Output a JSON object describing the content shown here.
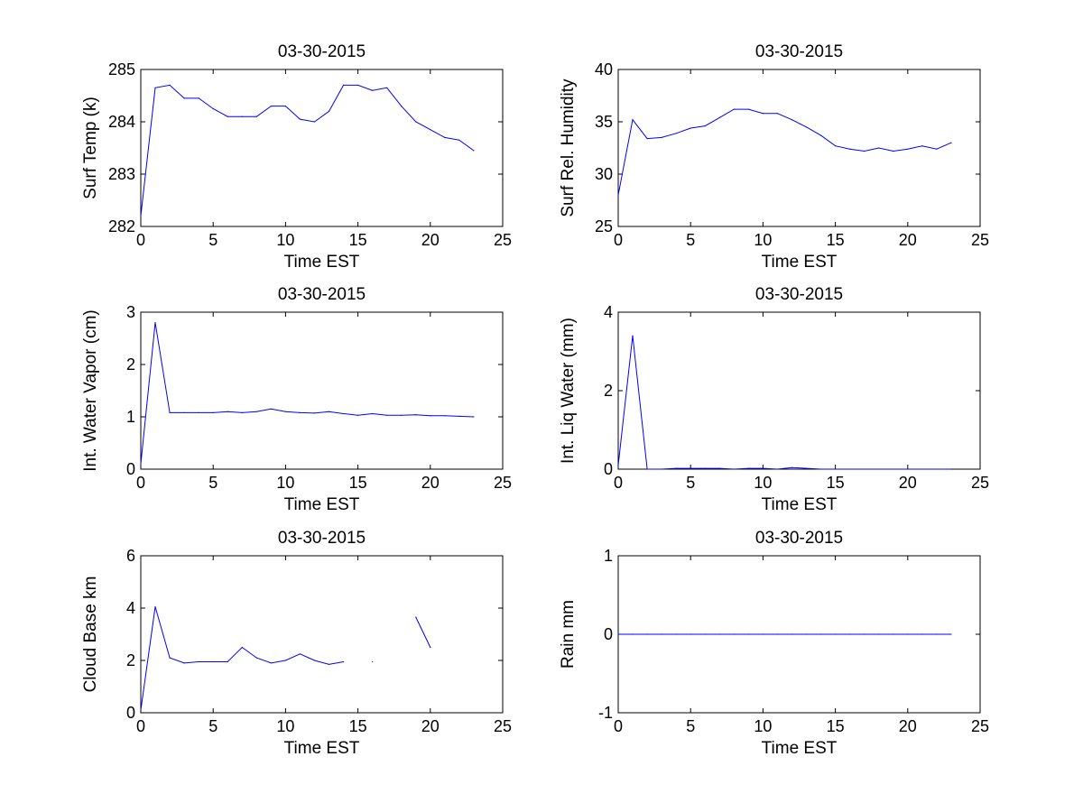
{
  "figure": {
    "background": "#ffffff",
    "line_color": "#0000ff",
    "axis_color": "#000000"
  },
  "chart_data": [
    {
      "type": "line",
      "title": "03-30-2015",
      "xlabel": "Time EST",
      "ylabel": "Surf Temp (k)",
      "xlim": [
        0,
        25
      ],
      "ylim": [
        282,
        285
      ],
      "xticks": [
        0,
        5,
        10,
        15,
        20,
        25
      ],
      "yticks": [
        282,
        283,
        284,
        285
      ],
      "grid": false,
      "series": [
        {
          "x": [
            0,
            1,
            2,
            3,
            4,
            5,
            6,
            7,
            8,
            9,
            10,
            11,
            12,
            13,
            14,
            15,
            16,
            17,
            18,
            19,
            20,
            21,
            22,
            23
          ],
          "y": [
            282.2,
            284.65,
            284.7,
            284.45,
            284.45,
            284.25,
            284.1,
            284.1,
            284.1,
            284.3,
            284.3,
            284.05,
            284.0,
            284.2,
            284.7,
            284.7,
            284.6,
            284.65,
            284.3,
            284.0,
            283.85,
            283.7,
            283.65,
            283.45
          ]
        }
      ]
    },
    {
      "type": "line",
      "title": "03-30-2015",
      "xlabel": "Time EST",
      "ylabel": "Surf Rel. Humidity",
      "xlim": [
        0,
        25
      ],
      "ylim": [
        25,
        40
      ],
      "xticks": [
        0,
        5,
        10,
        15,
        20,
        25
      ],
      "yticks": [
        25,
        30,
        35,
        40
      ],
      "grid": false,
      "series": [
        {
          "x": [
            0,
            1,
            2,
            3,
            4,
            5,
            6,
            7,
            8,
            9,
            10,
            11,
            12,
            13,
            14,
            15,
            16,
            17,
            18,
            19,
            20,
            21,
            22,
            23
          ],
          "y": [
            28.0,
            35.2,
            33.4,
            33.5,
            33.9,
            34.4,
            34.6,
            35.4,
            36.2,
            36.2,
            35.8,
            35.8,
            35.2,
            34.5,
            33.7,
            32.7,
            32.4,
            32.2,
            32.5,
            32.2,
            32.4,
            32.7,
            32.4,
            33.0
          ]
        }
      ]
    },
    {
      "type": "line",
      "title": "03-30-2015",
      "xlabel": "Time EST",
      "ylabel": "Int. Water Vapor (cm)",
      "xlim": [
        0,
        25
      ],
      "ylim": [
        0,
        3
      ],
      "xticks": [
        0,
        5,
        10,
        15,
        20,
        25
      ],
      "yticks": [
        0,
        1,
        2,
        3
      ],
      "grid": false,
      "series": [
        {
          "x": [
            0,
            1,
            2,
            3,
            4,
            5,
            6,
            7,
            8,
            9,
            10,
            11,
            12,
            13,
            14,
            15,
            16,
            17,
            18,
            19,
            20,
            21,
            22,
            23
          ],
          "y": [
            0.1,
            2.8,
            1.08,
            1.08,
            1.08,
            1.08,
            1.1,
            1.08,
            1.1,
            1.15,
            1.1,
            1.08,
            1.07,
            1.1,
            1.06,
            1.03,
            1.06,
            1.03,
            1.03,
            1.04,
            1.02,
            1.02,
            1.01,
            1.0
          ]
        }
      ]
    },
    {
      "type": "line",
      "title": "03-30-2015",
      "xlabel": "Time EST",
      "ylabel": "Int. Liq Water (mm)",
      "xlim": [
        0,
        25
      ],
      "ylim": [
        0,
        4
      ],
      "xticks": [
        0,
        5,
        10,
        15,
        20,
        25
      ],
      "yticks": [
        0,
        2,
        4
      ],
      "grid": false,
      "series": [
        {
          "x": [
            0,
            1,
            2,
            3,
            4,
            5,
            6,
            7,
            8,
            9,
            10,
            11,
            12,
            13,
            14,
            15,
            16,
            17,
            18,
            19,
            20,
            21,
            22,
            23
          ],
          "y": [
            0.1,
            3.4,
            0.0,
            0.0,
            0.02,
            0.02,
            0.02,
            0.02,
            0.0,
            0.02,
            0.02,
            0.0,
            0.04,
            0.02,
            0.0,
            0.0,
            0.0,
            0.0,
            0.0,
            0.0,
            0.0,
            0.0,
            0.0,
            0.0
          ]
        }
      ]
    },
    {
      "type": "line",
      "title": "03-30-2015",
      "xlabel": "Time EST",
      "ylabel": "Cloud Base km",
      "xlim": [
        0,
        25
      ],
      "ylim": [
        0,
        6
      ],
      "xticks": [
        0,
        5,
        10,
        15,
        20,
        25
      ],
      "yticks": [
        0,
        2,
        4,
        6
      ],
      "grid": false,
      "series": [
        {
          "x": [
            0,
            1,
            2,
            3,
            4,
            5,
            6,
            7,
            8,
            9,
            10,
            11,
            12,
            13,
            14,
            15,
            16,
            17,
            18,
            19,
            20,
            21,
            22,
            23
          ],
          "y": [
            0.1,
            4.05,
            2.1,
            1.9,
            1.95,
            1.95,
            1.95,
            2.5,
            2.1,
            1.9,
            2.0,
            2.25,
            2.0,
            1.85,
            1.95,
            null,
            1.95,
            null,
            null,
            3.65,
            2.5,
            null,
            null,
            null
          ]
        }
      ]
    },
    {
      "type": "line",
      "title": "03-30-2015",
      "xlabel": "Time EST",
      "ylabel": "Rain mm",
      "xlim": [
        0,
        25
      ],
      "ylim": [
        -1,
        1
      ],
      "xticks": [
        0,
        5,
        10,
        15,
        20,
        25
      ],
      "yticks": [
        -1,
        0,
        1
      ],
      "grid": false,
      "series": [
        {
          "x": [
            0,
            1,
            2,
            3,
            4,
            5,
            6,
            7,
            8,
            9,
            10,
            11,
            12,
            13,
            14,
            15,
            16,
            17,
            18,
            19,
            20,
            21,
            22,
            23
          ],
          "y": [
            0,
            0,
            0,
            0,
            0,
            0,
            0,
            0,
            0,
            0,
            0,
            0,
            0,
            0,
            0,
            0,
            0,
            0,
            0,
            0,
            0,
            0,
            0,
            0
          ]
        }
      ]
    }
  ]
}
